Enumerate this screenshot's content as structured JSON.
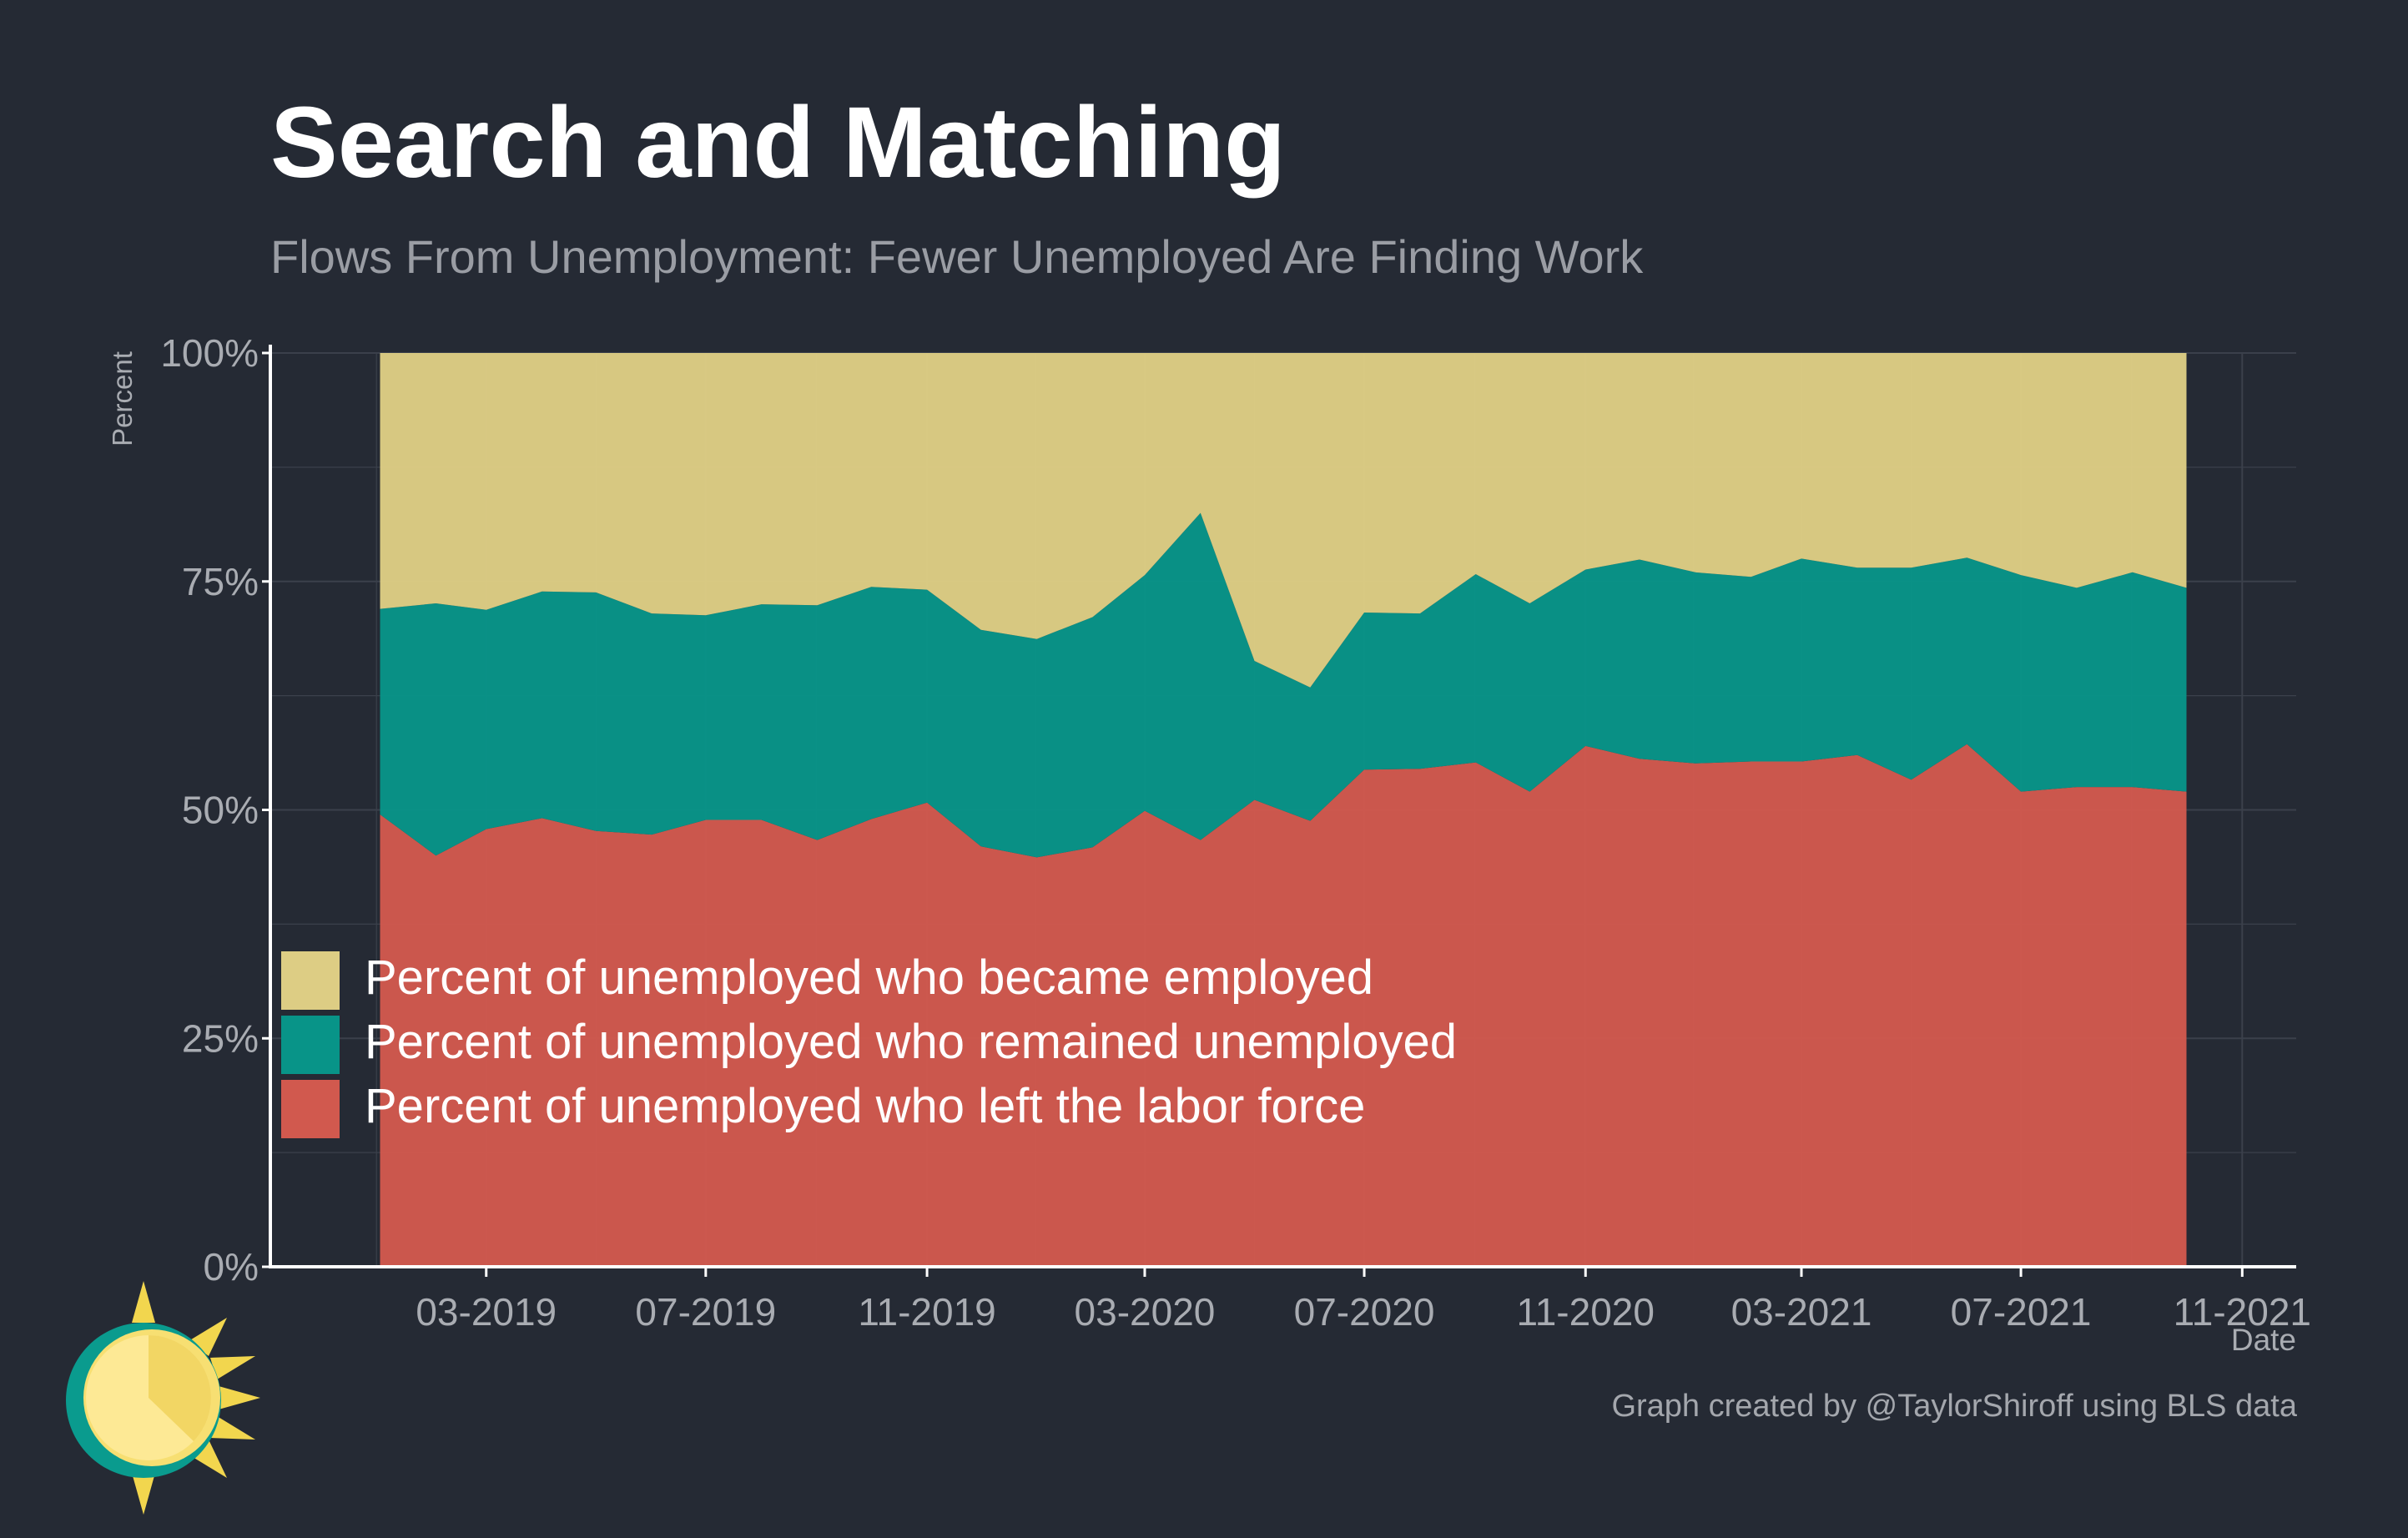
{
  "header": {
    "title": "Search and Matching",
    "subtitle": "Flows From Unemployment: Fewer Unemployed Are Finding Work"
  },
  "caption": "Graph created by @TaylorShiroff using BLS data",
  "colors": {
    "background": "#252a34",
    "became_employed": "#ddcd84",
    "remained_unemployed": "#089488",
    "left_labor_force": "#d1594e",
    "grid": "#3b404b",
    "axis_text": "#a9acb2"
  },
  "logo": {
    "icon": "sun-icon"
  },
  "chart_data": {
    "type": "area",
    "stacked": true,
    "normalized": true,
    "title": "Search and Matching",
    "subtitle": "Flows From Unemployment: Fewer Unemployed Are Finding Work",
    "xlabel": "Date",
    "ylabel": "Percent",
    "x_ticks": [
      "03-2019",
      "07-2019",
      "11-2019",
      "03-2020",
      "07-2020",
      "11-2020",
      "03-2021",
      "07-2021",
      "11-2021"
    ],
    "y_ticks": [
      "0%",
      "25%",
      "50%",
      "75%",
      "100%"
    ],
    "ylim": [
      0,
      100
    ],
    "xlim": [
      "2018-11-01",
      "2021-12-01"
    ],
    "grid": true,
    "legend_position": "bottom-left inside",
    "x": [
      "2019-01",
      "2019-02",
      "2019-03",
      "2019-04",
      "2019-05",
      "2019-06",
      "2019-07",
      "2019-08",
      "2019-09",
      "2019-10",
      "2019-11",
      "2019-12",
      "2020-01",
      "2020-02",
      "2020-03",
      "2020-04",
      "2020-05",
      "2020-06",
      "2020-07",
      "2020-08",
      "2020-09",
      "2020-10",
      "2020-11",
      "2020-12",
      "2021-01",
      "2021-02",
      "2021-03",
      "2021-04",
      "2021-05",
      "2021-06",
      "2021-07",
      "2021-08",
      "2021-09",
      "2021-10"
    ],
    "series": [
      {
        "name": "Percent of unemployed who left the labor force",
        "color": "#d1594e",
        "values": [
          49.5,
          45.0,
          47.9,
          49.1,
          47.7,
          47.3,
          48.9,
          48.9,
          46.7,
          49.0,
          50.8,
          46.0,
          44.8,
          45.9,
          49.9,
          46.7,
          51.1,
          48.8,
          54.4,
          54.5,
          55.2,
          52.0,
          57.0,
          55.6,
          55.1,
          55.3,
          55.3,
          56.0,
          53.3,
          57.2,
          52.0,
          52.5,
          52.5,
          52.0
        ]
      },
      {
        "name": "Percent of unemployed who remained unemployed",
        "color": "#089488",
        "values": [
          22.5,
          27.6,
          24.0,
          24.8,
          26.1,
          24.2,
          22.4,
          23.6,
          25.7,
          25.4,
          23.3,
          23.7,
          23.9,
          25.2,
          25.8,
          35.8,
          15.2,
          14.6,
          17.2,
          17.0,
          20.6,
          20.6,
          19.3,
          21.8,
          20.9,
          20.2,
          22.2,
          20.5,
          23.2,
          20.4,
          23.7,
          21.8,
          23.5,
          22.3
        ]
      },
      {
        "name": "Percent of unemployed who became employed",
        "color": "#ddcd84",
        "values": [
          28.0,
          27.4,
          28.1,
          26.1,
          26.2,
          28.5,
          28.7,
          27.5,
          27.6,
          25.6,
          25.9,
          30.3,
          31.3,
          28.9,
          24.3,
          17.5,
          33.7,
          36.6,
          28.4,
          28.5,
          24.2,
          27.4,
          23.7,
          22.6,
          24.0,
          24.5,
          22.5,
          23.5,
          23.5,
          22.4,
          24.3,
          25.7,
          24.0,
          25.7
        ]
      }
    ],
    "legend": [
      "Percent of unemployed who became employed",
      "Percent of unemployed who remained unemployed",
      "Percent of unemployed who left the labor force"
    ]
  }
}
